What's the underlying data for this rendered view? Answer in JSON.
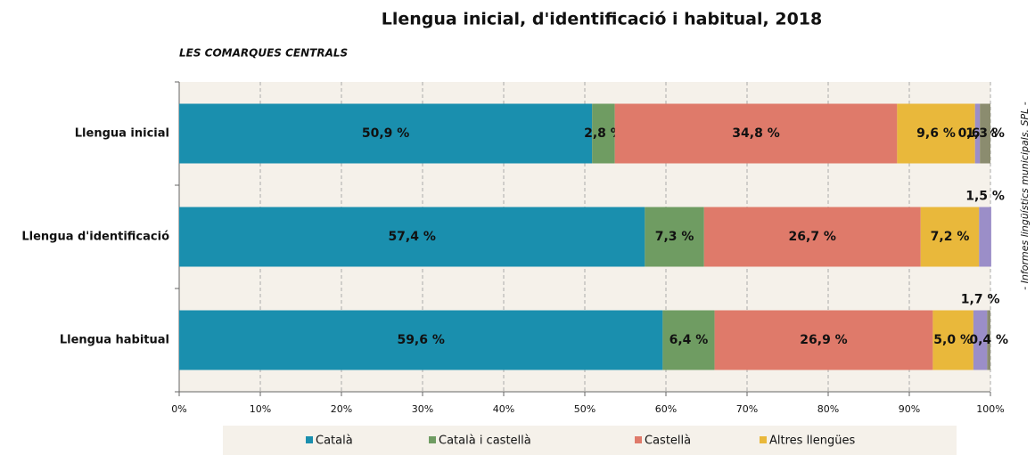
{
  "chart_data": {
    "type": "stacked-bar-horizontal",
    "title": "Llengua inicial, d'identificació i habitual, 2018",
    "subtitle": "LES COMARQUES CENTRALS",
    "source": "- Informes lingüístics municipals. SPL -",
    "categories": [
      "Llengua inicial",
      "Llengua d'identificació",
      "Llengua habitual"
    ],
    "series": [
      {
        "name": "Català",
        "color": "#1a8fae",
        "values": [
          50.9,
          57.4,
          59.6
        ],
        "value_labels": [
          "50,9 %",
          "57,4 %",
          "59,6 %"
        ]
      },
      {
        "name": "Català i castellà",
        "color": "#6f9c62",
        "values": [
          2.8,
          7.3,
          6.4
        ],
        "value_labels": [
          "2,8 %",
          "7,3 %",
          "6,4 %"
        ]
      },
      {
        "name": "Castellà",
        "color": "#df7a6a",
        "values": [
          34.8,
          26.7,
          26.9
        ],
        "value_labels": [
          "34,8 %",
          "26,7 %",
          "26,9 %"
        ]
      },
      {
        "name": "Altres llengües",
        "color": "#e9b83b",
        "values": [
          9.6,
          7.2,
          5.0
        ],
        "value_labels": [
          "9,6 %",
          "7,2 %",
          "5,0 %"
        ]
      },
      {
        "color": "#9b8ec8",
        "values": [
          0.6,
          1.5,
          1.7
        ],
        "value_labels": [
          "0,6 %",
          "1,5 %",
          "1,7 %"
        ]
      },
      {
        "color": "#8b8c6f",
        "values": [
          1.3,
          null,
          0.4
        ],
        "value_labels": [
          "1,3 %",
          null,
          "0,4 %"
        ]
      }
    ],
    "xlim": [
      0,
      100
    ],
    "xticks": [
      {
        "value": 0,
        "label": "0%"
      },
      {
        "value": 10,
        "label": "10%"
      },
      {
        "value": 20,
        "label": "20%"
      },
      {
        "value": 30,
        "label": "30%"
      },
      {
        "value": 40,
        "label": "40%"
      },
      {
        "value": 50,
        "label": "50%"
      },
      {
        "value": 60,
        "label": "60%"
      },
      {
        "value": 70,
        "label": "70%"
      },
      {
        "value": 80,
        "label": "80%"
      },
      {
        "value": 90,
        "label": "90%"
      },
      {
        "value": 100,
        "label": "100%"
      }
    ],
    "grid": true,
    "legend": "bottom"
  }
}
